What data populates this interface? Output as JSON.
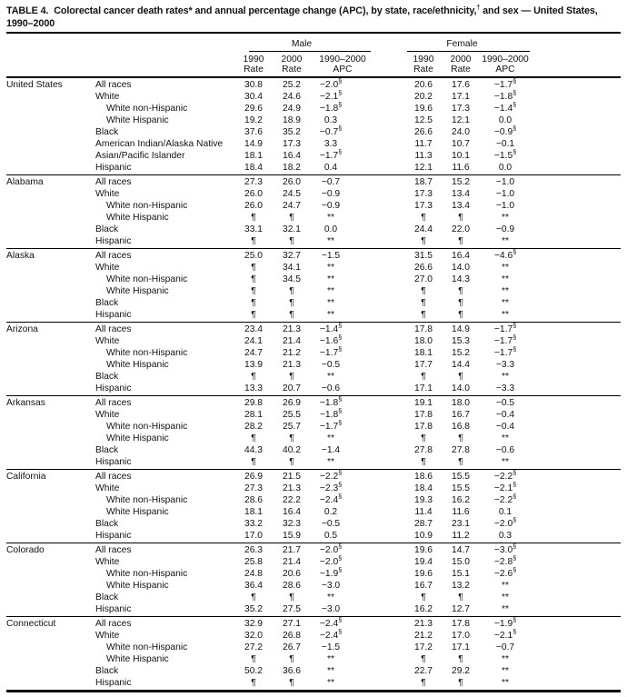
{
  "title": {
    "pre": "TABLE 4.  Colorectal cancer death rates* and annual percentage change (APC), by state, race/ethnicity,",
    "dagger": "†",
    "post": " and sex — United States, 1990–2000"
  },
  "table": {
    "header": {
      "male": "Male",
      "female": "Female",
      "year_1990": "1990",
      "year_2000": "2000",
      "range_1990_2000": "1990–2000",
      "rate": "Rate",
      "apc": "APC"
    },
    "symbols": {
      "suppressed": "¶",
      "unreliable_apc": "**",
      "significant": "§"
    },
    "sections": [
      {
        "state": "United States",
        "rows": [
          {
            "race": "All races",
            "indent": 0,
            "m1990": "30.8",
            "m2000": "25.2",
            "mapc": "−2.0§",
            "f1990": "20.6",
            "f2000": "17.6",
            "fapc": "−1.7§"
          },
          {
            "race": "White",
            "indent": 0,
            "m1990": "30.4",
            "m2000": "24.6",
            "mapc": "−2.1§",
            "f1990": "20.2",
            "f2000": "17.1",
            "fapc": "−1.8§"
          },
          {
            "race": "White non-Hispanic",
            "indent": 1,
            "m1990": "29.6",
            "m2000": "24.9",
            "mapc": "−1.8§",
            "f1990": "19.6",
            "f2000": "17.3",
            "fapc": "−1.4§"
          },
          {
            "race": "White Hispanic",
            "indent": 1,
            "m1990": "19.2",
            "m2000": "18.9",
            "mapc": "0.3",
            "f1990": "12.5",
            "f2000": "12.1",
            "fapc": "0.0"
          },
          {
            "race": "Black",
            "indent": 0,
            "m1990": "37.6",
            "m2000": "35.2",
            "mapc": "−0.7§",
            "f1990": "26.6",
            "f2000": "24.0",
            "fapc": "−0.9§"
          },
          {
            "race": "American Indian/Alaska Native",
            "indent": 0,
            "m1990": "14.9",
            "m2000": "17.3",
            "mapc": "3.3",
            "f1990": "11.7",
            "f2000": "10.7",
            "fapc": "−0.1"
          },
          {
            "race": "Asian/Pacific Islander",
            "indent": 0,
            "m1990": "18.1",
            "m2000": "16.4",
            "mapc": "−1.7§",
            "f1990": "11.3",
            "f2000": "10.1",
            "fapc": "−1.5§"
          },
          {
            "race": "Hispanic",
            "indent": 0,
            "m1990": "18.4",
            "m2000": "18.2",
            "mapc": "0.4",
            "f1990": "12.1",
            "f2000": "11.6",
            "fapc": "0.0"
          }
        ]
      },
      {
        "state": "Alabama",
        "rows": [
          {
            "race": "All races",
            "indent": 0,
            "m1990": "27.3",
            "m2000": "26.0",
            "mapc": "−0.7",
            "f1990": "18.7",
            "f2000": "15.2",
            "fapc": "−1.0"
          },
          {
            "race": "White",
            "indent": 0,
            "m1990": "26.0",
            "m2000": "24.5",
            "mapc": "−0.9",
            "f1990": "17.3",
            "f2000": "13.4",
            "fapc": "−1.0"
          },
          {
            "race": "White non-Hispanic",
            "indent": 1,
            "m1990": "26.0",
            "m2000": "24.7",
            "mapc": "−0.9",
            "f1990": "17.3",
            "f2000": "13.4",
            "fapc": "−1.0"
          },
          {
            "race": "White Hispanic",
            "indent": 1,
            "m1990": "¶",
            "m2000": "¶",
            "mapc": "**",
            "f1990": "¶",
            "f2000": "¶",
            "fapc": "**"
          },
          {
            "race": "Black",
            "indent": 0,
            "m1990": "33.1",
            "m2000": "32.1",
            "mapc": "0.0",
            "f1990": "24.4",
            "f2000": "22.0",
            "fapc": "−0.9"
          },
          {
            "race": "Hispanic",
            "indent": 0,
            "m1990": "¶",
            "m2000": "¶",
            "mapc": "**",
            "f1990": "¶",
            "f2000": "¶",
            "fapc": "**"
          }
        ]
      },
      {
        "state": "Alaska",
        "rows": [
          {
            "race": "All races",
            "indent": 0,
            "m1990": "25.0",
            "m2000": "32.7",
            "mapc": "−1.5",
            "f1990": "31.5",
            "f2000": "16.4",
            "fapc": "−4.6§"
          },
          {
            "race": "White",
            "indent": 0,
            "m1990": "¶",
            "m2000": "34.1",
            "mapc": "**",
            "f1990": "26.6",
            "f2000": "14.0",
            "fapc": "**"
          },
          {
            "race": "White non-Hispanic",
            "indent": 1,
            "m1990": "¶",
            "m2000": "34.5",
            "mapc": "**",
            "f1990": "27.0",
            "f2000": "14.3",
            "fapc": "**"
          },
          {
            "race": "White Hispanic",
            "indent": 1,
            "m1990": "¶",
            "m2000": "¶",
            "mapc": "**",
            "f1990": "¶",
            "f2000": "¶",
            "fapc": "**"
          },
          {
            "race": "Black",
            "indent": 0,
            "m1990": "¶",
            "m2000": "¶",
            "mapc": "**",
            "f1990": "¶",
            "f2000": "¶",
            "fapc": "**"
          },
          {
            "race": "Hispanic",
            "indent": 0,
            "m1990": "¶",
            "m2000": "¶",
            "mapc": "**",
            "f1990": "¶",
            "f2000": "¶",
            "fapc": "**"
          }
        ]
      },
      {
        "state": "Arizona",
        "rows": [
          {
            "race": "All races",
            "indent": 0,
            "m1990": "23.4",
            "m2000": "21.3",
            "mapc": "−1.4§",
            "f1990": "17.8",
            "f2000": "14.9",
            "fapc": "−1.7§"
          },
          {
            "race": "White",
            "indent": 0,
            "m1990": "24.1",
            "m2000": "21.4",
            "mapc": "−1.6§",
            "f1990": "18.0",
            "f2000": "15.3",
            "fapc": "−1.7§"
          },
          {
            "race": "White non-Hispanic",
            "indent": 1,
            "m1990": "24.7",
            "m2000": "21.2",
            "mapc": "−1.7§",
            "f1990": "18.1",
            "f2000": "15.2",
            "fapc": "−1.7§"
          },
          {
            "race": "White Hispanic",
            "indent": 1,
            "m1990": "13.9",
            "m2000": "21.3",
            "mapc": "−0.5",
            "f1990": "17.7",
            "f2000": "14.4",
            "fapc": "−3.3"
          },
          {
            "race": "Black",
            "indent": 0,
            "m1990": "¶",
            "m2000": "¶",
            "mapc": "**",
            "f1990": "¶",
            "f2000": "¶",
            "fapc": "**"
          },
          {
            "race": "Hispanic",
            "indent": 0,
            "m1990": "13.3",
            "m2000": "20.7",
            "mapc": "−0.6",
            "f1990": "17.1",
            "f2000": "14.0",
            "fapc": "−3.3"
          }
        ]
      },
      {
        "state": "Arkansas",
        "rows": [
          {
            "race": "All races",
            "indent": 0,
            "m1990": "29.8",
            "m2000": "26.9",
            "mapc": "−1.8§",
            "f1990": "19.1",
            "f2000": "18.0",
            "fapc": "−0.5"
          },
          {
            "race": "White",
            "indent": 0,
            "m1990": "28.1",
            "m2000": "25.5",
            "mapc": "−1.8§",
            "f1990": "17.8",
            "f2000": "16.7",
            "fapc": "−0.4"
          },
          {
            "race": "White non-Hispanic",
            "indent": 1,
            "m1990": "28.2",
            "m2000": "25.7",
            "mapc": "−1.7§",
            "f1990": "17.8",
            "f2000": "16.8",
            "fapc": "−0.4"
          },
          {
            "race": "White Hispanic",
            "indent": 1,
            "m1990": "¶",
            "m2000": "¶",
            "mapc": "**",
            "f1990": "¶",
            "f2000": "¶",
            "fapc": "**"
          },
          {
            "race": "Black",
            "indent": 0,
            "m1990": "44.3",
            "m2000": "40.2",
            "mapc": "−1.4",
            "f1990": "27.8",
            "f2000": "27.8",
            "fapc": "−0.6"
          },
          {
            "race": "Hispanic",
            "indent": 0,
            "m1990": "¶",
            "m2000": "¶",
            "mapc": "**",
            "f1990": "¶",
            "f2000": "¶",
            "fapc": "**"
          }
        ]
      },
      {
        "state": "California",
        "rows": [
          {
            "race": "All races",
            "indent": 0,
            "m1990": "26.9",
            "m2000": "21.5",
            "mapc": "−2.2§",
            "f1990": "18.6",
            "f2000": "15.5",
            "fapc": "−2.2§"
          },
          {
            "race": "White",
            "indent": 0,
            "m1990": "27.3",
            "m2000": "21.3",
            "mapc": "−2.3§",
            "f1990": "18.4",
            "f2000": "15.5",
            "fapc": "−2.1§"
          },
          {
            "race": "White non-Hispanic",
            "indent": 1,
            "m1990": "28.6",
            "m2000": "22.2",
            "mapc": "−2.4§",
            "f1990": "19.3",
            "f2000": "16.2",
            "fapc": "−2.2§"
          },
          {
            "race": "White Hispanic",
            "indent": 1,
            "m1990": "18.1",
            "m2000": "16.4",
            "mapc": "0.2",
            "f1990": "11.4",
            "f2000": "11.6",
            "fapc": "0.1"
          },
          {
            "race": "Black",
            "indent": 0,
            "m1990": "33.2",
            "m2000": "32.3",
            "mapc": "−0.5",
            "f1990": "28.7",
            "f2000": "23.1",
            "fapc": "−2.0§"
          },
          {
            "race": "Hispanic",
            "indent": 0,
            "m1990": "17.0",
            "m2000": "15.9",
            "mapc": "0.5",
            "f1990": "10.9",
            "f2000": "11.2",
            "fapc": "0.3"
          }
        ]
      },
      {
        "state": "Colorado",
        "rows": [
          {
            "race": "All races",
            "indent": 0,
            "m1990": "26.3",
            "m2000": "21.7",
            "mapc": "−2.0§",
            "f1990": "19.6",
            "f2000": "14.7",
            "fapc": "−3.0§"
          },
          {
            "race": "White",
            "indent": 0,
            "m1990": "25.8",
            "m2000": "21.4",
            "mapc": "−2.0§",
            "f1990": "19.4",
            "f2000": "15.0",
            "fapc": "−2.8§"
          },
          {
            "race": "White non-Hispanic",
            "indent": 1,
            "m1990": "24.8",
            "m2000": "20.6",
            "mapc": "−1.9§",
            "f1990": "19.6",
            "f2000": "15.1",
            "fapc": "−2.6§"
          },
          {
            "race": "White Hispanic",
            "indent": 1,
            "m1990": "36.4",
            "m2000": "28.6",
            "mapc": "−3.0",
            "f1990": "16.7",
            "f2000": "13.2",
            "fapc": "**"
          },
          {
            "race": "Black",
            "indent": 0,
            "m1990": "¶",
            "m2000": "¶",
            "mapc": "**",
            "f1990": "¶",
            "f2000": "¶",
            "fapc": "**"
          },
          {
            "race": "Hispanic",
            "indent": 0,
            "m1990": "35.2",
            "m2000": "27.5",
            "mapc": "−3.0",
            "f1990": "16.2",
            "f2000": "12.7",
            "fapc": "**"
          }
        ]
      },
      {
        "state": "Connecticut",
        "rows": [
          {
            "race": "All races",
            "indent": 0,
            "m1990": "32.9",
            "m2000": "27.1",
            "mapc": "−2.4§",
            "f1990": "21.3",
            "f2000": "17.8",
            "fapc": "−1.9§"
          },
          {
            "race": "White",
            "indent": 0,
            "m1990": "32.0",
            "m2000": "26.8",
            "mapc": "−2.4§",
            "f1990": "21.2",
            "f2000": "17.0",
            "fapc": "−2.1§"
          },
          {
            "race": "White non-Hispanic",
            "indent": 1,
            "m1990": "27.2",
            "m2000": "26.7",
            "mapc": "−1.5",
            "f1990": "17.2",
            "f2000": "17.1",
            "fapc": "−0.7"
          },
          {
            "race": "White Hispanic",
            "indent": 1,
            "m1990": "¶",
            "m2000": "¶",
            "mapc": "**",
            "f1990": "¶",
            "f2000": "¶",
            "fapc": "**"
          },
          {
            "race": "Black",
            "indent": 0,
            "m1990": "50.2",
            "m2000": "36.6",
            "mapc": "**",
            "f1990": "22.7",
            "f2000": "29.2",
            "fapc": "**"
          },
          {
            "race": "Hispanic",
            "indent": 0,
            "m1990": "¶",
            "m2000": "¶",
            "mapc": "**",
            "f1990": "¶",
            "f2000": "¶",
            "fapc": "**"
          }
        ]
      }
    ]
  }
}
